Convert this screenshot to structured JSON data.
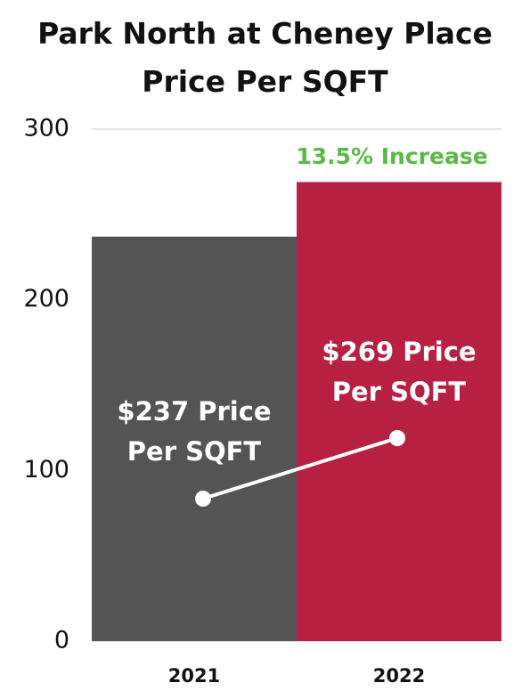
{
  "chart_data": {
    "type": "bar",
    "title": "Park North at Cheney Place",
    "subtitle": "Price Per SQFT",
    "categories": [
      "2021",
      "2022"
    ],
    "values": [
      237,
      269
    ],
    "value_labels": [
      "$237 Price Per SQFT",
      "$269 Price Per SQFT"
    ],
    "colors": [
      "#545454",
      "#b82042"
    ],
    "annotation": "13.5% Increase",
    "ylim": [
      0,
      300
    ],
    "yticks": [
      0,
      100,
      200,
      300
    ],
    "grid": true
  }
}
